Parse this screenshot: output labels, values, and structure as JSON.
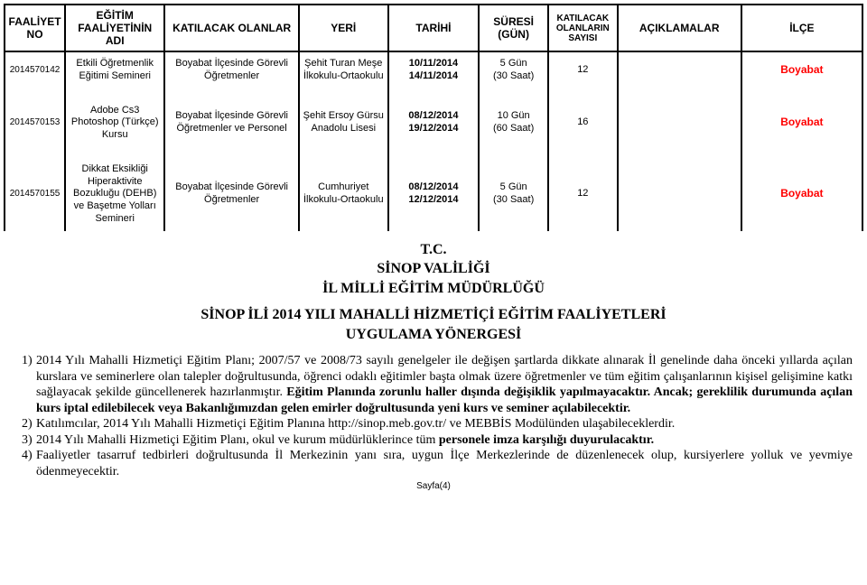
{
  "columns": {
    "no": "FAALİYET NO",
    "name": "EĞİTİM FAALİYETİNİN ADI",
    "att": "KATILACAK OLANLAR",
    "loc": "YERİ",
    "date": "TARİHİ",
    "dur": "SÜRESİ (GÜN)",
    "cnt": "KATILACAK OLANLARIN SAYISI",
    "desc": "AÇIKLAMALAR",
    "il": "İLÇE"
  },
  "rows": [
    {
      "no": "2014570142",
      "name": "Etkili Öğretmenlik Eğitimi Semineri",
      "att": "Boyabat İlçesinde Görevli Öğretmenler",
      "loc": "Şehit Turan Meşe İlkokulu-Ortaokulu",
      "date1": "10/11/2014",
      "date2": "14/11/2014",
      "dur1": "5 Gün",
      "dur2": "(30 Saat)",
      "cnt": "12",
      "desc": "",
      "il": "Boyabat"
    },
    {
      "no": "2014570153",
      "name": "Adobe Cs3 Photoshop (Türkçe) Kursu",
      "att": "Boyabat İlçesinde Görevli Öğretmenler ve Personel",
      "loc": "Şehit Ersoy Gürsu Anadolu Lisesi",
      "date1": "08/12/2014",
      "date2": "19/12/2014",
      "dur1": "10 Gün",
      "dur2": "(60 Saat)",
      "cnt": "16",
      "desc": "",
      "il": "Boyabat"
    },
    {
      "no": "2014570155",
      "name": "Dikkat Eksikliği Hiperaktivite Bozukluğu (DEHB) ve Başetme Yolları Semineri",
      "att": "Boyabat İlçesinde Görevli Öğretmenler",
      "loc": "Cumhuriyet İlkokulu-Ortaokulu",
      "date1": "08/12/2014",
      "date2": "12/12/2014",
      "dur1": "5 Gün",
      "dur2": "(30 Saat)",
      "cnt": "12",
      "desc": "",
      "il": "Boyabat"
    }
  ],
  "headings": {
    "l1": "T.C.",
    "l2": "SİNOP VALİLİĞİ",
    "l3": "İL MİLLİ EĞİTİM MÜDÜRLÜĞÜ",
    "l4": "SİNOP İLİ 2014 YILI  MAHALLİ HİZMETİÇİ EĞİTİM FAALİYETLERİ",
    "l5": "UYGULAMA YÖNERGESİ"
  },
  "paras": [
    {
      "n": "1)",
      "t": "2014 Yılı Mahalli Hizmetiçi Eğitim Planı; 2007/57 ve 2008/73 sayılı genelgeler ile değişen şartlarda dikkate alınarak İl genelinde daha önceki yıllarda açılan kurslara ve seminerlere olan talepler doğrultusunda, öğrenci odaklı eğitimler başta olmak üzere öğretmenler ve tüm eğitim çalışanlarının kişisel gelişimine katkı sağlayacak şekilde güncellenerek hazırlanmıştır. <b>Eğitim Planında zorunlu haller dışında değişiklik yapılmayacaktır. Ancak; gereklilik durumunda açılan kurs iptal edilebilecek veya Bakanlığımızdan gelen emirler doğrultusunda yeni kurs ve seminer açılabilecektir.</b>"
    },
    {
      "n": "2)",
      "t": "Katılımcılar, 2014 Yılı Mahalli Hizmetiçi Eğitim Planına http://sinop.meb.gov.tr/ ve MEBBİS Modülünden ulaşabileceklerdir."
    },
    {
      "n": "3)",
      "t": "2014 Yılı  Mahalli Hizmetiçi Eğitim Planı, okul ve kurum müdürlüklerince tüm <b>personele imza karşılığı duyurulacaktır.</b>"
    },
    {
      "n": "4)",
      "t": "Faaliyetler tasarruf tedbirleri doğrultusunda İl Merkezinin yanı sıra, uygun İlçe Merkezlerinde de düzenlenecek olup, kursiyerlere yolluk ve yevmiye ödenmeyecektir."
    }
  ],
  "footer": "Sayfa(4)",
  "style": {
    "accent": "#ff0000",
    "text": "#000000",
    "bg": "#ffffff"
  }
}
